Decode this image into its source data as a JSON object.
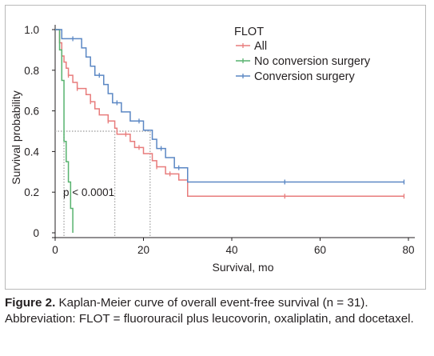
{
  "chart_data": {
    "type": "line",
    "xlabel": "Survival, mo",
    "ylabel": "Survival probability",
    "xlim": [
      0,
      80
    ],
    "ylim": [
      0,
      1
    ],
    "x_ticks": [
      0,
      20,
      40,
      60,
      80
    ],
    "y_ticks": [
      0,
      0.2,
      0.4,
      0.6,
      0.8,
      1.0
    ],
    "y_tick_labels": [
      "0",
      "0.2",
      "0.4",
      "0.6",
      "0.8",
      "1.0"
    ],
    "grid": false,
    "legend_title": "FLOT",
    "legend_position": "top-right",
    "annotation": "p < 0.0001",
    "median_reference_y": 0.5,
    "median_times": [
      2,
      13.5,
      21.5
    ],
    "series": [
      {
        "name": "All",
        "color": "#e87c7c",
        "steps": [
          [
            0,
            1.0
          ],
          [
            1,
            0.935
          ],
          [
            1.5,
            0.87
          ],
          [
            2,
            0.84
          ],
          [
            2.5,
            0.81
          ],
          [
            3,
            0.775
          ],
          [
            4,
            0.74
          ],
          [
            5,
            0.71
          ],
          [
            7,
            0.68
          ],
          [
            8,
            0.645
          ],
          [
            9,
            0.61
          ],
          [
            10,
            0.58
          ],
          [
            12,
            0.55
          ],
          [
            13.5,
            0.515
          ],
          [
            14,
            0.485
          ],
          [
            17,
            0.45
          ],
          [
            18,
            0.42
          ],
          [
            20,
            0.39
          ],
          [
            22,
            0.355
          ],
          [
            23,
            0.325
          ],
          [
            25,
            0.29
          ],
          [
            28,
            0.26
          ],
          [
            30,
            0.18
          ],
          [
            79,
            0.18
          ]
        ],
        "censor_x": [
          3,
          5,
          8,
          12,
          16,
          19,
          23,
          26,
          52,
          79
        ]
      },
      {
        "name": "No conversion surgery",
        "color": "#57b26e",
        "steps": [
          [
            0,
            1.0
          ],
          [
            1,
            0.9
          ],
          [
            1.5,
            0.75
          ],
          [
            2,
            0.45
          ],
          [
            2.5,
            0.35
          ],
          [
            3,
            0.25
          ],
          [
            3.5,
            0.12
          ],
          [
            4,
            0.0
          ]
        ],
        "censor_x": []
      },
      {
        "name": "Conversion surgery",
        "color": "#5b87c4",
        "steps": [
          [
            0,
            1.0
          ],
          [
            1.5,
            0.955
          ],
          [
            6,
            0.91
          ],
          [
            7,
            0.865
          ],
          [
            8,
            0.82
          ],
          [
            9,
            0.775
          ],
          [
            11,
            0.73
          ],
          [
            12,
            0.685
          ],
          [
            13,
            0.64
          ],
          [
            15,
            0.595
          ],
          [
            17,
            0.55
          ],
          [
            20,
            0.505
          ],
          [
            22,
            0.46
          ],
          [
            23,
            0.415
          ],
          [
            25,
            0.37
          ],
          [
            27,
            0.32
          ],
          [
            30,
            0.25
          ],
          [
            79,
            0.25
          ]
        ],
        "censor_x": [
          4,
          10,
          14,
          19,
          24,
          28,
          52,
          79
        ]
      }
    ]
  },
  "caption": {
    "label": "Figure 2.",
    "text": " Kaplan-Meier curve of overall event-free survival (n = 31). Abbreviation: FLOT = fluorouracil plus leucovorin, oxaliplatin, and docetaxel."
  }
}
